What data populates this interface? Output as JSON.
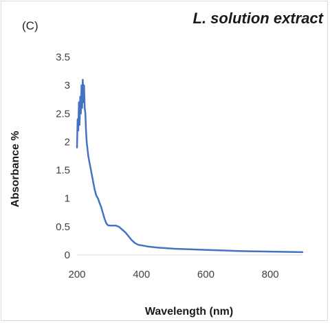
{
  "chart_data": {
    "type": "line",
    "panel_label": "(C)",
    "title": "L. solution extract",
    "xlabel": "Wavelength (nm)",
    "ylabel": "Absorbance %",
    "xlim": [
      200,
      900
    ],
    "ylim": [
      0,
      3.5
    ],
    "x_ticks": [
      "200",
      "400",
      "600",
      "800"
    ],
    "y_ticks": [
      "0",
      "0.5",
      "1",
      "1.5",
      "2",
      "2.5",
      "3",
      "3.5"
    ],
    "grid": false,
    "legend": "none",
    "series": [
      {
        "color": "#4472c4",
        "x": [
          200,
          202,
          204,
          206,
          208,
          210,
          212,
          214,
          216,
          218,
          220,
          222,
          224,
          226,
          228,
          230,
          235,
          240,
          245,
          250,
          255,
          260,
          265,
          270,
          275,
          280,
          285,
          290,
          295,
          300,
          305,
          310,
          320,
          330,
          340,
          350,
          360,
          370,
          380,
          390,
          400,
          420,
          450,
          500,
          550,
          600,
          650,
          700,
          750,
          800,
          850,
          900
        ],
        "y": [
          1.9,
          2.4,
          2.2,
          2.7,
          2.3,
          2.8,
          2.5,
          3.0,
          2.6,
          3.1,
          2.7,
          3.0,
          2.6,
          2.5,
          2.2,
          2.0,
          1.75,
          1.6,
          1.45,
          1.3,
          1.15,
          1.05,
          1.0,
          0.92,
          0.85,
          0.75,
          0.65,
          0.57,
          0.53,
          0.52,
          0.52,
          0.52,
          0.52,
          0.5,
          0.45,
          0.4,
          0.33,
          0.26,
          0.21,
          0.18,
          0.17,
          0.15,
          0.13,
          0.11,
          0.1,
          0.09,
          0.08,
          0.07,
          0.065,
          0.06,
          0.055,
          0.05
        ]
      }
    ]
  }
}
